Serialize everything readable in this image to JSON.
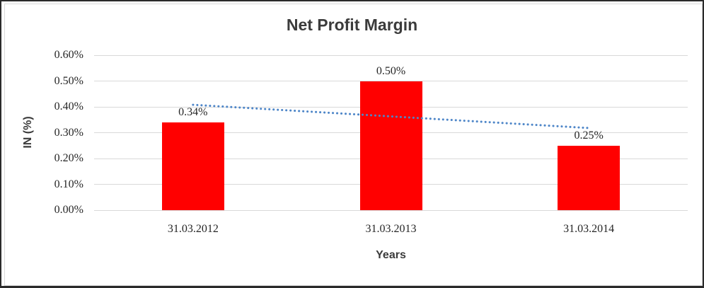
{
  "chart_data": {
    "type": "bar",
    "title": "Net Profit Margin",
    "xlabel": "Years",
    "ylabel": "IN (%)",
    "categories": [
      "31.03.2012",
      "31.03.2013",
      "31.03.2014"
    ],
    "values": [
      0.34,
      0.5,
      0.25
    ],
    "data_labels": [
      "0.34%",
      "0.50%",
      "0.25%"
    ],
    "ytick_labels": [
      "0.00%",
      "0.10%",
      "0.20%",
      "0.30%",
      "0.40%",
      "0.50%",
      "0.60%"
    ],
    "ylim": [
      0,
      0.6
    ],
    "grid": true,
    "legend": false,
    "bar_color": "#ff0000",
    "gridline_color": "#d9d9d9",
    "text_color": "#262626",
    "title_color": "#3b3b3b",
    "trendline": {
      "type": "linear",
      "style": "dotted",
      "color": "#4e86c8",
      "start_value": 0.408,
      "end_value": 0.318
    }
  }
}
